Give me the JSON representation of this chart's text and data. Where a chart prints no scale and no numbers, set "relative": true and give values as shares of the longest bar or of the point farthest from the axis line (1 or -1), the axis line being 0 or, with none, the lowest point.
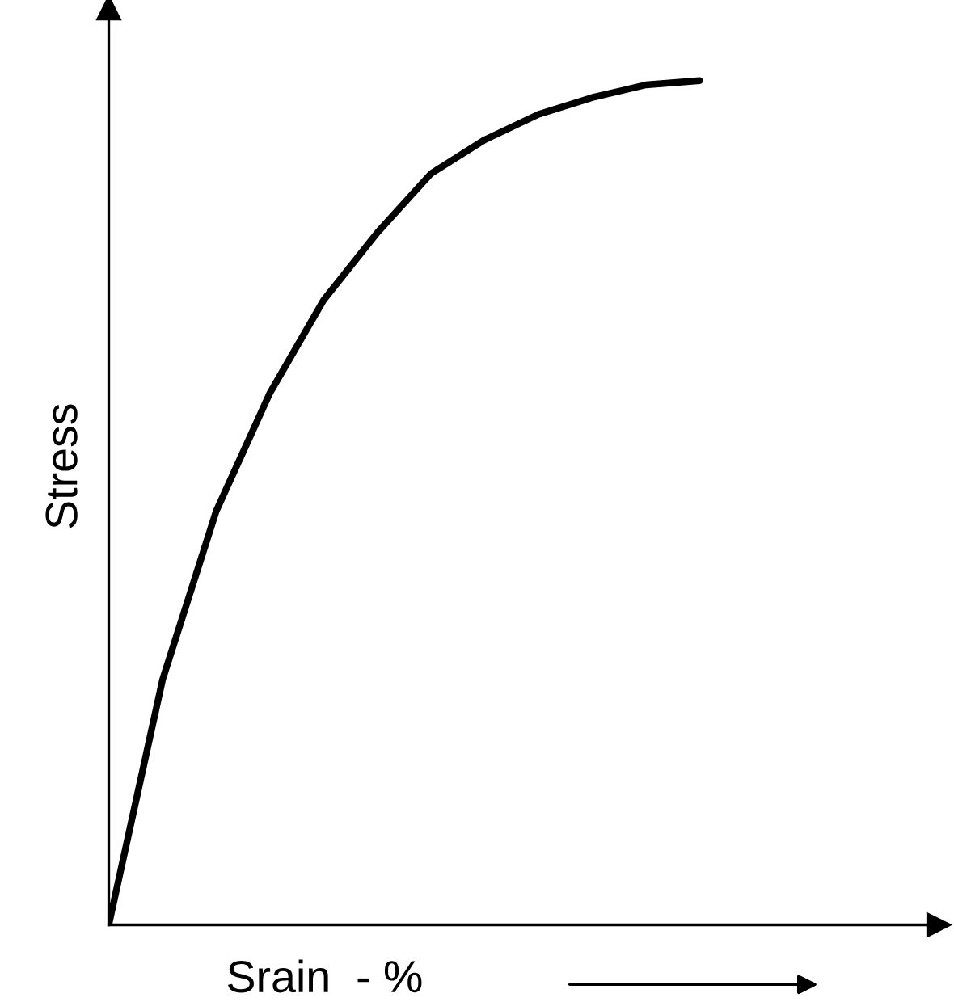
{
  "chart_data": {
    "type": "line",
    "relative": true,
    "xlabel": "Srain  - %",
    "ylabel": "Stress",
    "categories": [
      null,
      null,
      null,
      null,
      null,
      null,
      null,
      null,
      null,
      null,
      null,
      null
    ],
    "series": [
      {
        "color": "#000000",
        "values": [
          0,
          0.29,
          0.49,
          0.63,
          0.74,
          0.82,
          0.89,
          0.93,
          0.96,
          0.98,
          0.995,
          1.0
        ]
      }
    ]
  }
}
